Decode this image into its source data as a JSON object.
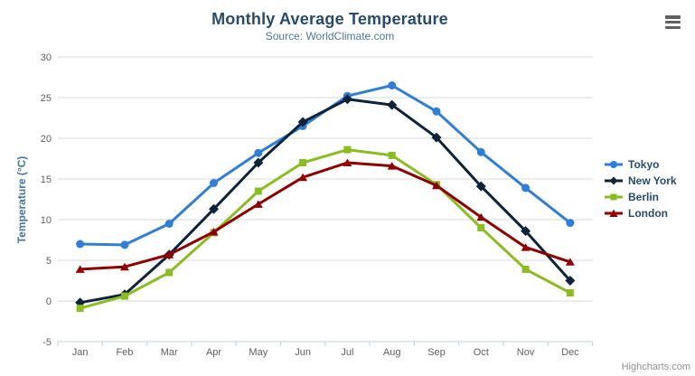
{
  "chart_data": {
    "type": "line",
    "title": "Monthly Average Temperature",
    "subtitle": "Source: WorldClimate.com",
    "categories": [
      "Jan",
      "Feb",
      "Mar",
      "Apr",
      "May",
      "Jun",
      "Jul",
      "Aug",
      "Sep",
      "Oct",
      "Nov",
      "Dec"
    ],
    "series": [
      {
        "name": "Tokyo",
        "color": "#2f7ed8",
        "marker": "circle",
        "values": [
          7.0,
          6.9,
          9.5,
          14.5,
          18.2,
          21.5,
          25.2,
          26.5,
          23.3,
          18.3,
          13.9,
          9.6
        ]
      },
      {
        "name": "New York",
        "color": "#0d233a",
        "marker": "diamond",
        "values": [
          -0.2,
          0.8,
          5.7,
          11.3,
          17.0,
          22.0,
          24.8,
          24.1,
          20.1,
          14.1,
          8.6,
          2.5
        ]
      },
      {
        "name": "Berlin",
        "color": "#8bbc21",
        "marker": "square",
        "values": [
          -0.9,
          0.6,
          3.5,
          8.4,
          13.5,
          17.0,
          18.6,
          17.9,
          14.3,
          9.0,
          3.9,
          1.0
        ]
      },
      {
        "name": "London",
        "color": "#910000",
        "marker": "triangle",
        "values": [
          3.9,
          4.2,
          5.7,
          8.5,
          11.9,
          15.2,
          17.0,
          16.6,
          14.2,
          10.3,
          6.6,
          4.8
        ]
      }
    ],
    "xlabel": "",
    "ylabel": "Temperature (°C)",
    "ylim": [
      -5,
      30
    ],
    "yticks": [
      -5,
      0,
      5,
      10,
      15,
      20,
      25,
      30
    ],
    "grid": true,
    "legend_position": "right",
    "colors": {
      "grid": "#d8d8d8",
      "axis_line": "#c0d0e0",
      "tick_label": "#606060",
      "axis_title": "#4572a7",
      "title": "#274b6d",
      "subtitle": "#4d759e",
      "legend_text": "#274b6d",
      "credit": "#8f8f8f"
    }
  },
  "export_menu": {
    "icon": "hamburger-menu-icon"
  },
  "credits": {
    "label": "Highcharts.com"
  }
}
